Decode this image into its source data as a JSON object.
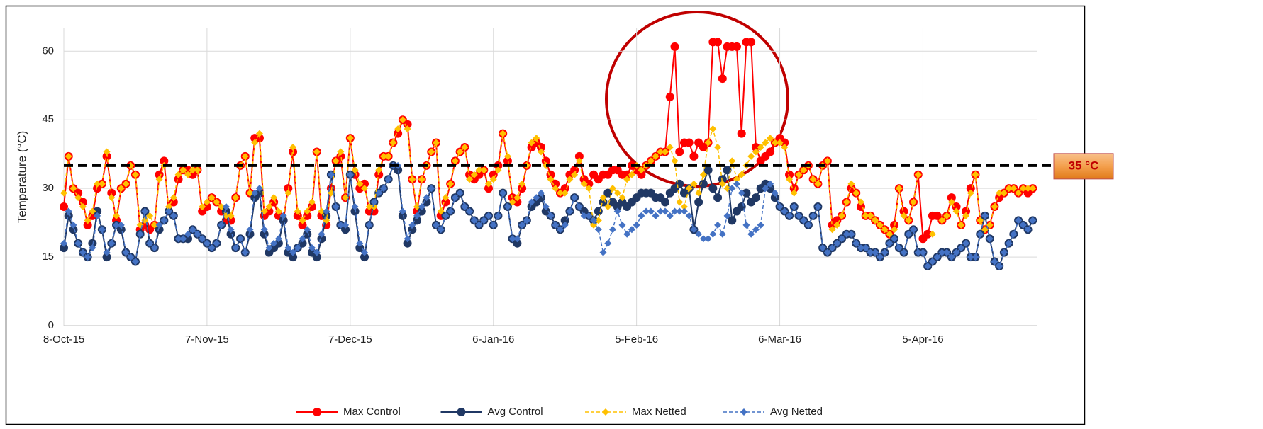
{
  "chart_data": {
    "type": "line",
    "y_label": "Temperature (°C)",
    "x": [
      "8-Oct-15",
      "9-Oct-15",
      "10-Oct-15",
      "11-Oct-15",
      "12-Oct-15",
      "13-Oct-15",
      "14-Oct-15",
      "15-Oct-15",
      "16-Oct-15",
      "17-Oct-15",
      "18-Oct-15",
      "19-Oct-15",
      "20-Oct-15",
      "21-Oct-15",
      "22-Oct-15",
      "23-Oct-15",
      "24-Oct-15",
      "25-Oct-15",
      "26-Oct-15",
      "27-Oct-15",
      "28-Oct-15",
      "29-Oct-15",
      "30-Oct-15",
      "31-Oct-15",
      "1-Nov-15",
      "2-Nov-15",
      "3-Nov-15",
      "4-Nov-15",
      "5-Nov-15",
      "6-Nov-15",
      "7-Nov-15",
      "8-Nov-15",
      "9-Nov-15",
      "10-Nov-15",
      "11-Nov-15",
      "12-Nov-15",
      "13-Nov-15",
      "14-Nov-15",
      "15-Nov-15",
      "16-Nov-15",
      "17-Nov-15",
      "18-Nov-15",
      "19-Nov-15",
      "20-Nov-15",
      "21-Nov-15",
      "22-Nov-15",
      "23-Nov-15",
      "24-Nov-15",
      "25-Nov-15",
      "26-Nov-15",
      "27-Nov-15",
      "28-Nov-15",
      "29-Nov-15",
      "30-Nov-15",
      "1-Dec-15",
      "2-Dec-15",
      "3-Dec-15",
      "4-Dec-15",
      "5-Dec-15",
      "6-Dec-15",
      "7-Dec-15",
      "8-Dec-15",
      "9-Dec-15",
      "10-Dec-15",
      "11-Dec-15",
      "12-Dec-15",
      "13-Dec-15",
      "14-Dec-15",
      "15-Dec-15",
      "16-Dec-15",
      "17-Dec-15",
      "18-Dec-15",
      "19-Dec-15",
      "20-Dec-15",
      "21-Dec-15",
      "22-Dec-15",
      "23-Dec-15",
      "24-Dec-15",
      "25-Dec-15",
      "26-Dec-15",
      "27-Dec-15",
      "28-Dec-15",
      "29-Dec-15",
      "30-Dec-15",
      "31-Dec-15",
      "1-Jan-16",
      "2-Jan-16",
      "3-Jan-16",
      "4-Jan-16",
      "5-Jan-16",
      "6-Jan-16",
      "7-Jan-16",
      "8-Jan-16",
      "9-Jan-16",
      "10-Jan-16",
      "11-Jan-16",
      "12-Jan-16",
      "13-Jan-16",
      "14-Jan-16",
      "15-Jan-16",
      "16-Jan-16",
      "17-Jan-16",
      "18-Jan-16",
      "19-Jan-16",
      "20-Jan-16",
      "21-Jan-16",
      "22-Jan-16",
      "23-Jan-16",
      "24-Jan-16",
      "25-Jan-16",
      "26-Jan-16",
      "27-Jan-16",
      "28-Jan-16",
      "29-Jan-16",
      "30-Jan-16",
      "31-Jan-16",
      "1-Feb-16",
      "2-Feb-16",
      "3-Feb-16",
      "4-Feb-16",
      "5-Feb-16",
      "6-Feb-16",
      "7-Feb-16",
      "8-Feb-16",
      "9-Feb-16",
      "10-Feb-16",
      "11-Feb-16",
      "12-Feb-16",
      "13-Feb-16",
      "14-Feb-16",
      "15-Feb-16",
      "16-Feb-16",
      "17-Feb-16",
      "18-Feb-16",
      "19-Feb-16",
      "20-Feb-16",
      "21-Feb-16",
      "22-Feb-16",
      "23-Feb-16",
      "24-Feb-16",
      "25-Feb-16",
      "26-Feb-16",
      "27-Feb-16",
      "28-Feb-16",
      "29-Feb-16",
      "1-Mar-16",
      "2-Mar-16",
      "3-Mar-16",
      "4-Mar-16",
      "5-Mar-16",
      "6-Mar-16",
      "7-Mar-16",
      "8-Mar-16",
      "9-Mar-16",
      "10-Mar-16",
      "11-Mar-16",
      "12-Mar-16",
      "13-Mar-16",
      "14-Mar-16",
      "15-Mar-16",
      "16-Mar-16",
      "17-Mar-16",
      "18-Mar-16",
      "19-Mar-16",
      "20-Mar-16",
      "21-Mar-16",
      "22-Mar-16",
      "23-Mar-16",
      "24-Mar-16",
      "25-Mar-16",
      "26-Mar-16",
      "27-Mar-16",
      "28-Mar-16",
      "29-Mar-16",
      "30-Mar-16",
      "31-Mar-16",
      "1-Apr-16",
      "2-Apr-16",
      "3-Apr-16",
      "4-Apr-16",
      "5-Apr-16",
      "6-Apr-16",
      "7-Apr-16",
      "8-Apr-16",
      "9-Apr-16",
      "10-Apr-16",
      "11-Apr-16",
      "12-Apr-16",
      "13-Apr-16",
      "14-Apr-16",
      "15-Apr-16",
      "16-Apr-16",
      "17-Apr-16",
      "18-Apr-16",
      "19-Apr-16",
      "20-Apr-16",
      "21-Apr-16",
      "22-Apr-16",
      "23-Apr-16",
      "24-Apr-16",
      "25-Apr-16",
      "26-Apr-16",
      "27-Apr-16",
      "28-Apr-16"
    ],
    "series": [
      {
        "name": "Max Control",
        "color": "#ff0000",
        "marker": "circle",
        "dashed": false,
        "values": [
          26,
          37,
          30,
          29,
          27,
          22,
          24,
          30,
          31,
          37,
          29,
          23,
          30,
          31,
          35,
          33,
          21,
          22,
          21,
          22,
          33,
          36,
          25,
          27,
          32,
          34,
          34,
          33,
          34,
          25,
          26,
          28,
          27,
          25,
          23,
          23,
          28,
          35,
          37,
          29,
          41,
          41,
          24,
          25,
          27,
          24,
          23,
          30,
          38,
          24,
          22,
          24,
          26,
          38,
          24,
          22,
          30,
          36,
          37,
          28,
          41,
          33,
          30,
          31,
          25,
          25,
          33,
          37,
          37,
          40,
          42,
          45,
          44,
          32,
          25,
          32,
          35,
          38,
          40,
          24,
          27,
          31,
          36,
          38,
          39,
          33,
          32,
          33,
          34,
          30,
          33,
          35,
          42,
          36,
          28,
          27,
          30,
          35,
          39,
          40,
          39,
          36,
          33,
          31,
          29,
          30,
          33,
          34,
          37,
          32,
          31,
          33,
          32,
          33,
          33,
          34,
          34,
          33,
          33,
          35,
          34,
          33,
          35,
          36,
          37,
          38,
          38,
          50,
          61,
          38,
          40,
          40,
          37,
          40,
          39,
          40,
          62,
          62,
          54,
          61,
          61,
          61,
          42,
          62,
          62,
          39,
          36,
          37,
          38,
          40,
          41,
          40,
          33,
          30,
          33,
          34,
          35,
          32,
          31,
          35,
          36,
          22,
          23,
          24,
          27,
          30,
          29,
          26,
          24,
          24,
          23,
          22,
          21,
          20,
          22,
          30,
          25,
          23,
          27,
          33,
          19,
          20,
          24,
          24,
          23,
          24,
          28,
          26,
          22,
          25,
          30,
          33,
          23,
          21,
          22,
          26,
          28,
          29,
          30,
          30,
          29,
          30,
          29,
          30
        ]
      },
      {
        "name": "Avg Control",
        "color": "#203864",
        "marker": "circle",
        "dashed": false,
        "values": [
          17,
          24,
          21,
          18,
          16,
          15,
          18,
          25,
          21,
          15,
          18,
          22,
          21,
          16,
          15,
          14,
          20,
          25,
          18,
          17,
          21,
          23,
          25,
          24,
          19,
          19,
          19,
          21,
          20,
          19,
          18,
          17,
          18,
          22,
          25,
          20,
          17,
          19,
          16,
          20,
          28,
          29,
          20,
          16,
          17,
          18,
          23,
          16,
          15,
          17,
          18,
          20,
          16,
          15,
          19,
          24,
          33,
          26,
          22,
          21,
          33,
          25,
          17,
          15,
          22,
          27,
          29,
          30,
          32,
          35,
          34,
          24,
          18,
          21,
          23,
          25,
          27,
          30,
          22,
          21,
          24,
          25,
          28,
          29,
          26,
          25,
          23,
          22,
          23,
          24,
          22,
          24,
          29,
          26,
          19,
          18,
          22,
          23,
          26,
          27,
          28,
          25,
          24,
          22,
          21,
          23,
          25,
          28,
          26,
          25,
          24,
          23,
          25,
          27,
          29,
          27,
          26,
          27,
          26,
          27,
          28,
          29,
          29,
          29,
          28,
          28,
          27,
          29,
          30,
          31,
          29,
          30,
          21,
          27,
          31,
          34,
          30,
          28,
          32,
          34,
          23,
          25,
          26,
          29,
          27,
          28,
          30,
          31,
          30,
          28,
          26,
          25,
          24,
          26,
          24,
          23,
          22,
          24,
          26,
          17,
          16,
          17,
          18,
          19,
          20,
          20,
          18,
          17,
          17,
          16,
          16,
          15,
          16,
          18,
          19,
          17,
          16,
          20,
          21,
          16,
          16,
          13,
          14,
          15,
          16,
          16,
          15,
          16,
          17,
          18,
          15,
          15,
          20,
          24,
          19,
          14,
          13,
          16,
          18,
          20,
          23,
          22,
          21,
          23
        ]
      },
      {
        "name": "Max Netted",
        "color": "#ffc000",
        "marker": "diamond",
        "dashed": true,
        "values": [
          29,
          37,
          30,
          28,
          26,
          23,
          25,
          31,
          31,
          38,
          28,
          24,
          30,
          31,
          35,
          33,
          22,
          23,
          24,
          22,
          32,
          35,
          26,
          28,
          33,
          34,
          33,
          34,
          34,
          26,
          27,
          28,
          27,
          26,
          24,
          24,
          28,
          35,
          37,
          29,
          40,
          42,
          25,
          26,
          28,
          25,
          24,
          29,
          39,
          25,
          23,
          25,
          27,
          38,
          25,
          23,
          29,
          36,
          38,
          28,
          41,
          34,
          31,
          30,
          26,
          26,
          34,
          37,
          37,
          40,
          43,
          45,
          43,
          32,
          26,
          32,
          35,
          38,
          40,
          25,
          28,
          31,
          36,
          38,
          39,
          32,
          33,
          34,
          34,
          31,
          32,
          34,
          42,
          37,
          27,
          28,
          31,
          35,
          40,
          41,
          38,
          35,
          32,
          30,
          29,
          29,
          32,
          33,
          36,
          31,
          30,
          22,
          23,
          28,
          26,
          30,
          29,
          28,
          32,
          33,
          35,
          34,
          35,
          36,
          37,
          38,
          38,
          39,
          36,
          27,
          26,
          30,
          31,
          29,
          33,
          40,
          43,
          39,
          31,
          30,
          36,
          32,
          33,
          35,
          37,
          38,
          39,
          40,
          41,
          40,
          40,
          39,
          32,
          29,
          33,
          34,
          35,
          32,
          31,
          35,
          36,
          21,
          22,
          24,
          27,
          31,
          29,
          27,
          24,
          24,
          23,
          22,
          21,
          20,
          21,
          30,
          24,
          23,
          27,
          33,
          null,
          null,
          20,
          null,
          23,
          24,
          27,
          25,
          22,
          24,
          29,
          33,
          23,
          21,
          22,
          26,
          29,
          29,
          30,
          30,
          29,
          30,
          30,
          30
        ]
      },
      {
        "name": "Avg Netted",
        "color": "#4472c4",
        "marker": "diamond",
        "dashed": true,
        "values": [
          18,
          25,
          22,
          18,
          16,
          15,
          17,
          24,
          21,
          16,
          18,
          22,
          22,
          16,
          15,
          14,
          20,
          25,
          18,
          17,
          22,
          23,
          25,
          24,
          19,
          19,
          20,
          21,
          20,
          19,
          18,
          17,
          18,
          22,
          26,
          21,
          17,
          19,
          16,
          21,
          29,
          30,
          21,
          17,
          18,
          19,
          24,
          17,
          16,
          17,
          19,
          21,
          17,
          16,
          20,
          25,
          33,
          26,
          22,
          22,
          33,
          26,
          18,
          16,
          22,
          27,
          29,
          30,
          32,
          35,
          35,
          25,
          19,
          22,
          24,
          26,
          28,
          30,
          22,
          21,
          24,
          25,
          28,
          29,
          26,
          25,
          23,
          22,
          23,
          24,
          22,
          24,
          29,
          26,
          19,
          19,
          22,
          23,
          27,
          28,
          29,
          26,
          24,
          22,
          21,
          22,
          25,
          28,
          26,
          24,
          24,
          23,
          21,
          16,
          18,
          21,
          25,
          22,
          20,
          21,
          22,
          24,
          25,
          25,
          24,
          25,
          25,
          24,
          25,
          25,
          25,
          24,
          21,
          20,
          19,
          19,
          20,
          22,
          20,
          24,
          30,
          31,
          29,
          22,
          20,
          21,
          22,
          30,
          31,
          29,
          26,
          25,
          24,
          26,
          24,
          23,
          22,
          24,
          26,
          17,
          16,
          17,
          18,
          19,
          20,
          20,
          18,
          17,
          17,
          16,
          16,
          15,
          16,
          18,
          19,
          17,
          16,
          20,
          21,
          16,
          16,
          13,
          14,
          15,
          16,
          16,
          15,
          16,
          17,
          18,
          15,
          15,
          20,
          24,
          19,
          14,
          13,
          16,
          18,
          20,
          23,
          22,
          21,
          23
        ]
      }
    ],
    "xlim": [
      "8-Oct-15",
      "29-Apr-16"
    ],
    "xticks": [
      "8-Oct-15",
      "7-Nov-15",
      "7-Dec-15",
      "6-Jan-16",
      "5-Feb-16",
      "6-Mar-16",
      "5-Apr-16"
    ],
    "ylim": [
      0,
      65
    ],
    "yticks": [
      0,
      15,
      30,
      45,
      60
    ],
    "grid": true,
    "legend": "bottom",
    "threshold": {
      "value": 35,
      "label": "35 °C",
      "color": "#000000"
    }
  }
}
